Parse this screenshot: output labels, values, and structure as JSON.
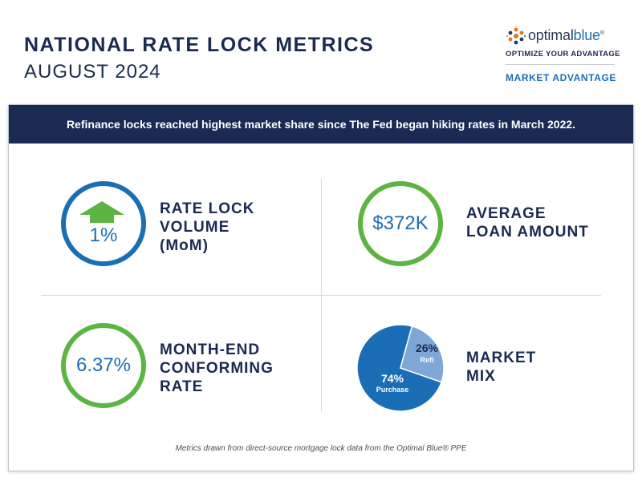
{
  "header": {
    "title": "NATIONAL RATE LOCK METRICS",
    "subtitle": "AUGUST 2024"
  },
  "logo": {
    "word_dark": "optimal",
    "word_blue": "blue",
    "registered": "®",
    "tagline": "OPTIMIZE YOUR ADVANTAGE",
    "section": "MARKET ADVANTAGE"
  },
  "banner": "Refinance locks reached highest market share since The Fed began hiking rates in March 2022.",
  "metrics": {
    "volume": {
      "value": "1%",
      "direction": "up-arrow-icon",
      "label": [
        "RATE LOCK",
        "VOLUME",
        "(MoM)"
      ]
    },
    "loan": {
      "value": "$372K",
      "label": [
        "AVERAGE",
        "LOAN AMOUNT"
      ]
    },
    "rate": {
      "value": "6.37%",
      "label": [
        "MONTH-END",
        "CONFORMING",
        "RATE"
      ]
    },
    "mix": {
      "label": [
        "MARKET",
        "MIX"
      ]
    }
  },
  "chart_data": {
    "type": "pie",
    "categories": [
      "Purchase",
      "Refi"
    ],
    "values": [
      74,
      26
    ],
    "value_labels": [
      "74%",
      "26%"
    ],
    "colors": [
      "#1a6eb5",
      "#7ea6d6"
    ]
  },
  "colors": {
    "navy": "#1b2a52",
    "blue": "#1a6eb5",
    "green": "#5cb443",
    "light_blue": "#7ea6d6"
  },
  "footnote": "Metrics drawn from direct-source mortgage lock data from the Optimal Blue® PPE"
}
